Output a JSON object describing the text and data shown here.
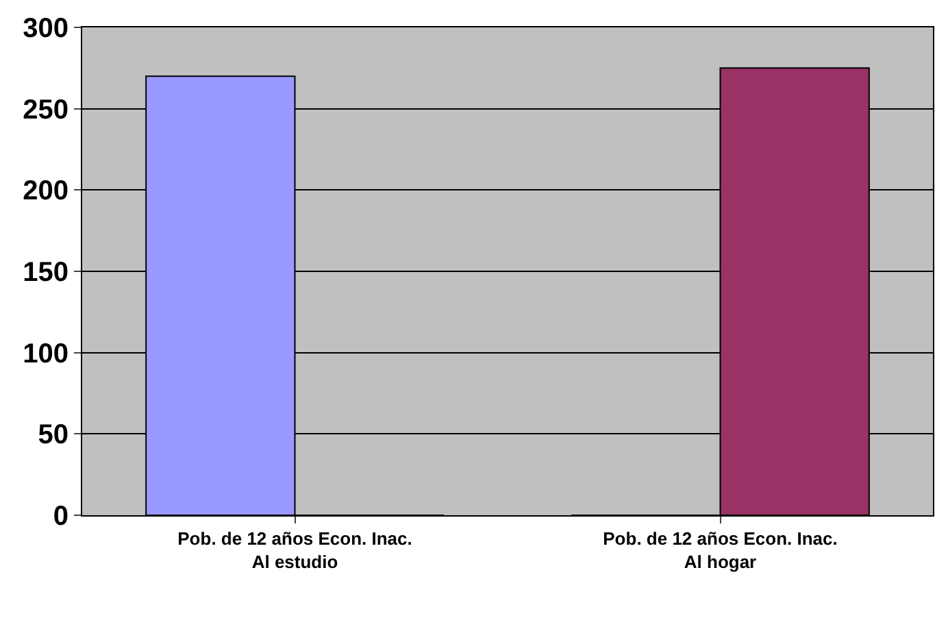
{
  "chart_data": {
    "type": "bar",
    "categories": [
      "Pob. de 12 años Econ. Inac.\nAl estudio",
      "Pob. de 12 años Econ. Inac.\nAl hogar"
    ],
    "series": [
      {
        "color": "#9999ff",
        "values": [
          270,
          0
        ]
      },
      {
        "color": "#993366",
        "values": [
          0,
          275
        ]
      }
    ],
    "ylim": [
      0,
      300
    ],
    "yticks": [
      0,
      50,
      100,
      150,
      200,
      250,
      300
    ],
    "grid": "y"
  }
}
